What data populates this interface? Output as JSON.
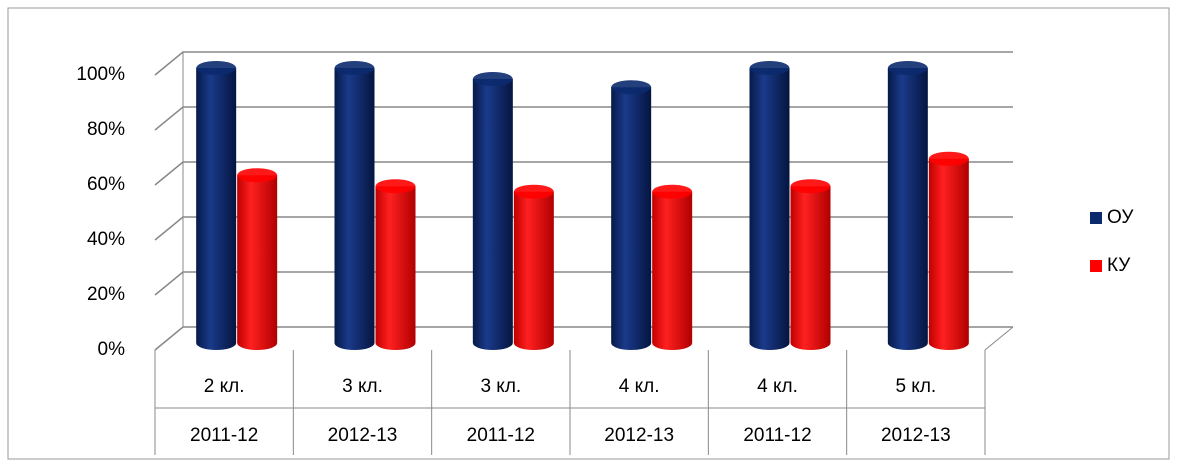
{
  "chart_data": {
    "type": "bar",
    "categories": [
      "2 кл.",
      "3 кл.",
      "3 кл.",
      "4 кл.",
      "4 кл.",
      "5 кл."
    ],
    "category_years": [
      "2011-12",
      "2012-13",
      "2011-12",
      "2012-13",
      "2011-12",
      "2012-13"
    ],
    "series": [
      {
        "name": "ОУ",
        "color": "#0b2a6e",
        "values": [
          100,
          100,
          96,
          93,
          100,
          100
        ]
      },
      {
        "name": "КУ",
        "color": "#ff0000",
        "values": [
          61,
          57,
          55,
          55,
          57,
          67
        ]
      }
    ],
    "ylim": [
      0,
      100
    ],
    "yticks": [
      {
        "value": 0,
        "label": "0%"
      },
      {
        "value": 20,
        "label": "20%"
      },
      {
        "value": 40,
        "label": "40%"
      },
      {
        "value": 60,
        "label": "60%"
      },
      {
        "value": 80,
        "label": "80%"
      },
      {
        "value": 100,
        "label": "100%"
      }
    ],
    "grid": true,
    "legend": "right"
  }
}
